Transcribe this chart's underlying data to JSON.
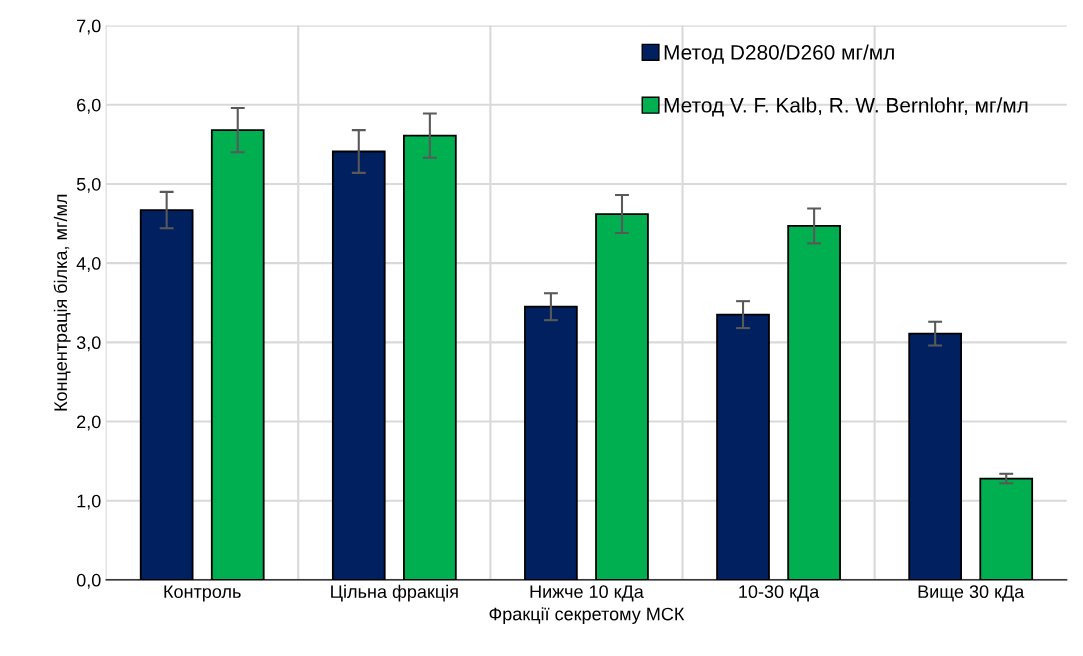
{
  "chart_data": {
    "type": "bar",
    "xlabel": "Фракції секретому МСК",
    "ylabel": "Концентрація білка, мг/мл",
    "categories": [
      "Контроль",
      "Цільна фракція",
      "Нижче 10 кДа",
      "10-30 кДа",
      "Вище 30 кДа"
    ],
    "series": [
      {
        "name": "Метод D280/D260 мг/мл",
        "color": "#002060",
        "values": [
          4.67,
          5.41,
          3.45,
          3.35,
          3.11
        ],
        "errors": [
          0.23,
          0.27,
          0.17,
          0.17,
          0.15
        ]
      },
      {
        "name": "Метод V. F. Kalb, R. W. Bernlohr, мг/мл",
        "color": "#00b050",
        "values": [
          5.68,
          5.61,
          4.62,
          4.47,
          1.28
        ],
        "errors": [
          0.28,
          0.28,
          0.24,
          0.22,
          0.06
        ]
      }
    ],
    "ylim": [
      0,
      7
    ],
    "yticks": [
      {
        "value": 0,
        "label": "0,0"
      },
      {
        "value": 1,
        "label": "1,0"
      },
      {
        "value": 2,
        "label": "2,0"
      },
      {
        "value": 3,
        "label": "3,0"
      },
      {
        "value": 4,
        "label": "4,0"
      },
      {
        "value": 5,
        "label": "5,0"
      },
      {
        "value": 6,
        "label": "6,0"
      },
      {
        "value": 7,
        "label": "7,0"
      }
    ],
    "grid": true,
    "legend": "top right"
  }
}
